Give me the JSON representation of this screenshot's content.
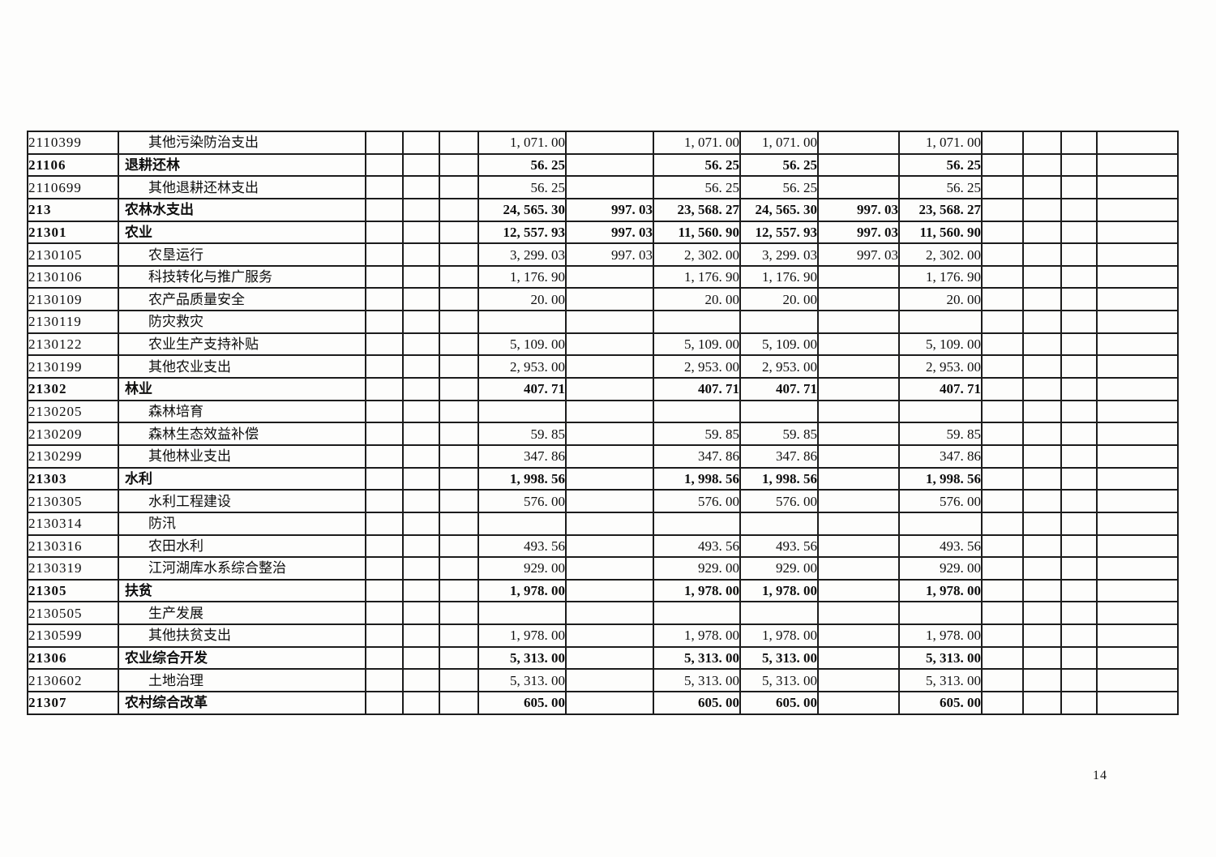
{
  "page": {
    "number": "14"
  },
  "table": {
    "rows": [
      {
        "code": "2110399",
        "name": "其他污染防治支出",
        "level": "child",
        "values": [
          "1, 071. 00",
          "",
          "1, 071. 00",
          "1, 071. 00",
          "",
          "1, 071. 00"
        ]
      },
      {
        "code": "21106",
        "name": "退耕还林",
        "level": "parent",
        "values": [
          "56. 25",
          "",
          "56. 25",
          "56. 25",
          "",
          "56. 25"
        ]
      },
      {
        "code": "2110699",
        "name": "其他退耕还林支出",
        "level": "child",
        "values": [
          "56. 25",
          "",
          "56. 25",
          "56. 25",
          "",
          "56. 25"
        ]
      },
      {
        "code": "213",
        "name": "农林水支出",
        "level": "parent",
        "values": [
          "24, 565. 30",
          "997. 03",
          "23, 568. 27",
          "24, 565. 30",
          "997. 03",
          "23, 568. 27"
        ]
      },
      {
        "code": "21301",
        "name": "农业",
        "level": "parent",
        "values": [
          "12, 557. 93",
          "997. 03",
          "11, 560. 90",
          "12, 557. 93",
          "997. 03",
          "11, 560. 90"
        ]
      },
      {
        "code": "2130105",
        "name": "农垦运行",
        "level": "child",
        "values": [
          "3, 299. 03",
          "997. 03",
          "2, 302. 00",
          "3, 299. 03",
          "997. 03",
          "2, 302. 00"
        ]
      },
      {
        "code": "2130106",
        "name": "科技转化与推广服务",
        "level": "child",
        "values": [
          "1, 176. 90",
          "",
          "1, 176. 90",
          "1, 176. 90",
          "",
          "1, 176. 90"
        ]
      },
      {
        "code": "2130109",
        "name": "农产品质量安全",
        "level": "child",
        "values": [
          "20. 00",
          "",
          "20. 00",
          "20. 00",
          "",
          "20. 00"
        ]
      },
      {
        "code": "2130119",
        "name": "防灾救灾",
        "level": "child",
        "values": [
          "",
          "",
          "",
          "",
          "",
          ""
        ]
      },
      {
        "code": "2130122",
        "name": "农业生产支持补贴",
        "level": "child",
        "values": [
          "5, 109. 00",
          "",
          "5, 109. 00",
          "5, 109. 00",
          "",
          "5, 109. 00"
        ]
      },
      {
        "code": "2130199",
        "name": "其他农业支出",
        "level": "child",
        "values": [
          "2, 953. 00",
          "",
          "2, 953. 00",
          "2, 953. 00",
          "",
          "2, 953. 00"
        ]
      },
      {
        "code": "21302",
        "name": "林业",
        "level": "parent",
        "values": [
          "407. 71",
          "",
          "407. 71",
          "407. 71",
          "",
          "407. 71"
        ]
      },
      {
        "code": "2130205",
        "name": "森林培育",
        "level": "child",
        "values": [
          "",
          "",
          "",
          "",
          "",
          ""
        ]
      },
      {
        "code": "2130209",
        "name": "森林生态效益补偿",
        "level": "child",
        "values": [
          "59. 85",
          "",
          "59. 85",
          "59. 85",
          "",
          "59. 85"
        ]
      },
      {
        "code": "2130299",
        "name": "其他林业支出",
        "level": "child",
        "values": [
          "347. 86",
          "",
          "347. 86",
          "347. 86",
          "",
          "347. 86"
        ]
      },
      {
        "code": "21303",
        "name": "水利",
        "level": "parent",
        "values": [
          "1, 998. 56",
          "",
          "1, 998. 56",
          "1, 998. 56",
          "",
          "1, 998. 56"
        ]
      },
      {
        "code": "2130305",
        "name": "水利工程建设",
        "level": "child",
        "values": [
          "576. 00",
          "",
          "576. 00",
          "576. 00",
          "",
          "576. 00"
        ]
      },
      {
        "code": "2130314",
        "name": "防汛",
        "level": "child",
        "values": [
          "",
          "",
          "",
          "",
          "",
          ""
        ]
      },
      {
        "code": "2130316",
        "name": "农田水利",
        "level": "child",
        "values": [
          "493. 56",
          "",
          "493. 56",
          "493. 56",
          "",
          "493. 56"
        ]
      },
      {
        "code": "2130319",
        "name": "江河湖库水系综合整治",
        "level": "child",
        "values": [
          "929. 00",
          "",
          "929. 00",
          "929. 00",
          "",
          "929. 00"
        ]
      },
      {
        "code": "21305",
        "name": "扶贫",
        "level": "parent",
        "values": [
          "1, 978. 00",
          "",
          "1, 978. 00",
          "1, 978. 00",
          "",
          "1, 978. 00"
        ]
      },
      {
        "code": "2130505",
        "name": "生产发展",
        "level": "child",
        "values": [
          "",
          "",
          "",
          "",
          "",
          ""
        ]
      },
      {
        "code": "2130599",
        "name": "其他扶贫支出",
        "level": "child",
        "values": [
          "1, 978. 00",
          "",
          "1, 978. 00",
          "1, 978. 00",
          "",
          "1, 978. 00"
        ]
      },
      {
        "code": "21306",
        "name": "农业综合开发",
        "level": "parent",
        "values": [
          "5, 313. 00",
          "",
          "5, 313. 00",
          "5, 313. 00",
          "",
          "5, 313. 00"
        ]
      },
      {
        "code": "2130602",
        "name": "土地治理",
        "level": "child",
        "values": [
          "5, 313. 00",
          "",
          "5, 313. 00",
          "5, 313. 00",
          "",
          "5, 313. 00"
        ]
      },
      {
        "code": "21307",
        "name": "农村综合改革",
        "level": "parent",
        "values": [
          "605. 00",
          "",
          "605. 00",
          "605. 00",
          "",
          "605. 00"
        ]
      }
    ]
  }
}
